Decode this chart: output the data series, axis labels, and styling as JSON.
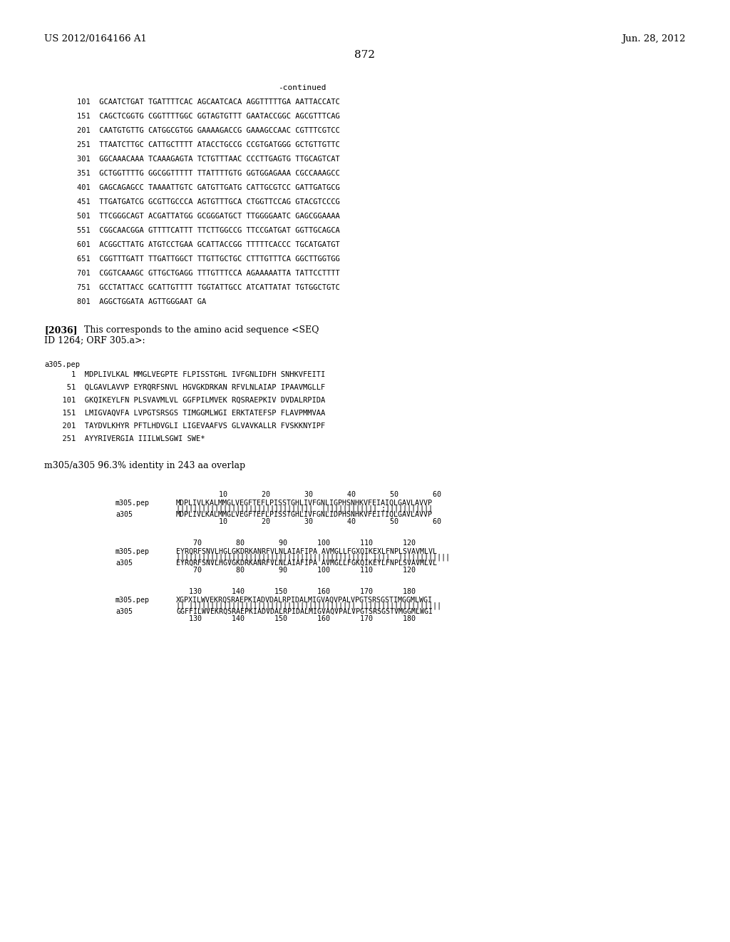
{
  "background_color": "#ffffff",
  "header_left": "US 2012/0164166 A1",
  "header_right": "Jun. 28, 2012",
  "page_number": "872",
  "continued_label": "-continued",
  "dna_lines": [
    "101  GCAATCTGAT TGATTTTCAC AGCAATCACA AGGTTTTTGA AATTACCATC",
    "151  CAGCTCGGTG CGGTTTTGGC GGTAGTGTTT GAATACCGGC AGCGTTTCAG",
    "201  CAATGTGTTG CATGGCGTGG GAAAAGACCG GAAAGCCAAC CGTTTCGTCC",
    "251  TTAATCTTGC CATTGCTTTT ATACCTGCCG CCGTGATGGG GCTGTTGTTC",
    "301  GGCAAACAAA TCAAAGAGTA TCTGTTTAAC CCCTTGAGTG TTGCAGTCAT",
    "351  GCTGGTTTTG GGCGGTTTTT TTATTTTGTG GGTGGAGAAA CGCCAAAGCC",
    "401  GAGCAGAGCC TAAAATTGTC GATGTTGATG CATTGCGTCC GATTGATGCG",
    "451  TTGATGATCG GCGTTGCCCA AGTGTTTGCA CTGGTTCCAG GTACGTCCCG",
    "501  TTCGGGCAGT ACGATTATGG GCGGGATGCT TTGGGGAATC GAGCGGAAAA",
    "551  CGGCAACGGA GTTTTCATTT TTCTTGGCCG TTCCGATGAT GGTTGCAGCA",
    "601  ACGGCTTATG ATGTCCTGAA GCATTACCGG TTTTTCACCC TGCATGATGT",
    "651  CGGTTTGATT TTGATTGGCT TTGTTGCTGC CTTTGTTTCA GGCTTGGTGG",
    "701  CGGTCAAAGC GTTGCTGAGG TTTGTTTCCA AGAAAAATTA TATTCCTTTT",
    "751  GCCTATTACC GCATTGTTTT TGGTATTGCC ATCATTATAT TGTGGCTGTC",
    "801  AGGCTGGATA AGTTGGGAAT GA"
  ],
  "paragraph_label": "[2036]",
  "paragraph_text1": "This corresponds to the amino acid sequence <SEQ",
  "paragraph_text2": "ID 1264; ORF 305.a>:",
  "pep_header": "a305.pep",
  "pep_lines": [
    "    1  MDPLIVLKAL MMGLVEGPTE FLPISSTGHL IVFGNLIDFH SNHKVFEITI",
    "   51  QLGAVLAVVP EYRQRFSNVL HGVGKDRKAN RFVLNLAIAP IPAAVMGLLF",
    "  101  GKQIKEYLFN PLSVAVMLVL GGFPILMVEK RQSRAEPKIV DVDALRPIDA",
    "  151  LMIGVAQVFA LVPGTSRSGS TIMGGMLWGI ERKTATEFSP FLAVPMMVAA",
    "  201  TAYDVLKHYR PFTLHDVGLI LIGEVAAFVS GLVAVKALLR FVSKKNYIPF",
    "  251  AYYRIVERGIA IIILWLSGWI SWE*"
  ],
  "identity_line": "m305/a305 96.3% identity in 243 aa overlap",
  "align1_ruler": "          10        20        30        40        50        60",
  "align1_n1": "m305.pep",
  "align1_s1": "MDPLIVLKALMMGLVEGFTEFLPISSTGHLIVFGNLIGPHSNHKVFEIAIQLGAVLAVVP",
  "align1_m": "||||||||||||||||||||||||||||||||  ||||||||||||| :|||||||||||",
  "align1_n2": "a305",
  "align1_s2": "MDPLIVLKALMMGLVEGFTEFLPISSTGHLIVFGNLIDPHSNHKVFEITIQLGAVLAVVP",
  "align1_ruler2": "          10        20        30        40        50        60",
  "align2_ruler": "    70        80        90       100       110       120",
  "align2_n1": "m305.pep",
  "align2_s1": "EYRQRFSNVLHGLGKDRKANRFVLNLAIAFIPA AVMGLLFGXQIKEXLFNPLSVAVMLVL",
  "align2_m": "||||||||||||||||||||||||||||||||||||||||||||| ||||  ||||||||||||",
  "align2_n2": "a305",
  "align2_s2": "EYRQRFSNVLHGVGKDRKANRFVLNLAIAFIPA AVMGLLFGKQIKEYLFNPLSVAVMLVL",
  "align2_ruler2": "    70        80        90       100       110       120",
  "align3_ruler": "   130       140       150       160       170       180",
  "align3_n1": "m305.pep",
  "align3_s1": "XGPXILWVEKRQSRAEPKIADVDALRPIDALMIGVAQVPALVPGTSRSGSTIMGGMLWGI",
  "align3_m": "|| ||||||||||||||||||||||||||||||||||||||| |||||||||||||||||||",
  "align3_n2": "a305",
  "align3_s2": "GGFFILWVEKRQSRAEPKIADVDALRPIDALMIGVAQVPALVPGTSRSGSTVMGGMLWGI",
  "align3_ruler2": "   130       140       150       160       170       180"
}
